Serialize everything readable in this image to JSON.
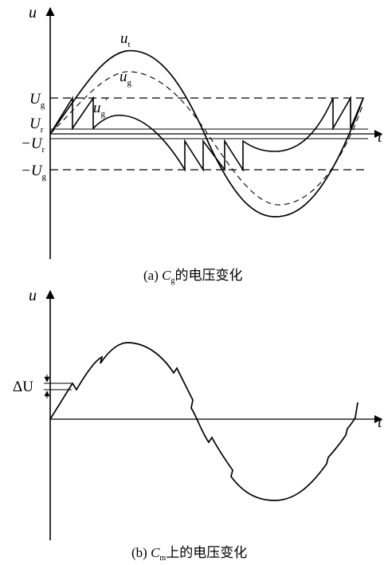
{
  "panel_a": {
    "axis_u": "u",
    "axis_t": "t",
    "curve_ut": {
      "main": "u",
      "sub": "t"
    },
    "curve_ug": {
      "main": "u",
      "sub": "g"
    },
    "curve_ug_prime": {
      "main": "u",
      "sub": "g",
      "sup": "′"
    },
    "level_Ug": {
      "main": "U",
      "sub": "g"
    },
    "level_Ur": {
      "main": "U",
      "sub": "r"
    },
    "level_neg_Ur": {
      "main": "−U",
      "sub": "r"
    },
    "level_neg_Ug": {
      "main": "−U",
      "sub": "g"
    },
    "caption": {
      "prefix": "(a) ",
      "var": "C",
      "sub": "g",
      "suffix": "的电压变化"
    }
  },
  "panel_b": {
    "axis_u": "u",
    "axis_t": "t",
    "delta_label": "ΔU",
    "caption": {
      "prefix": "(b) ",
      "var": "C",
      "sub": "m",
      "suffix": "上的电压变化"
    }
  }
}
